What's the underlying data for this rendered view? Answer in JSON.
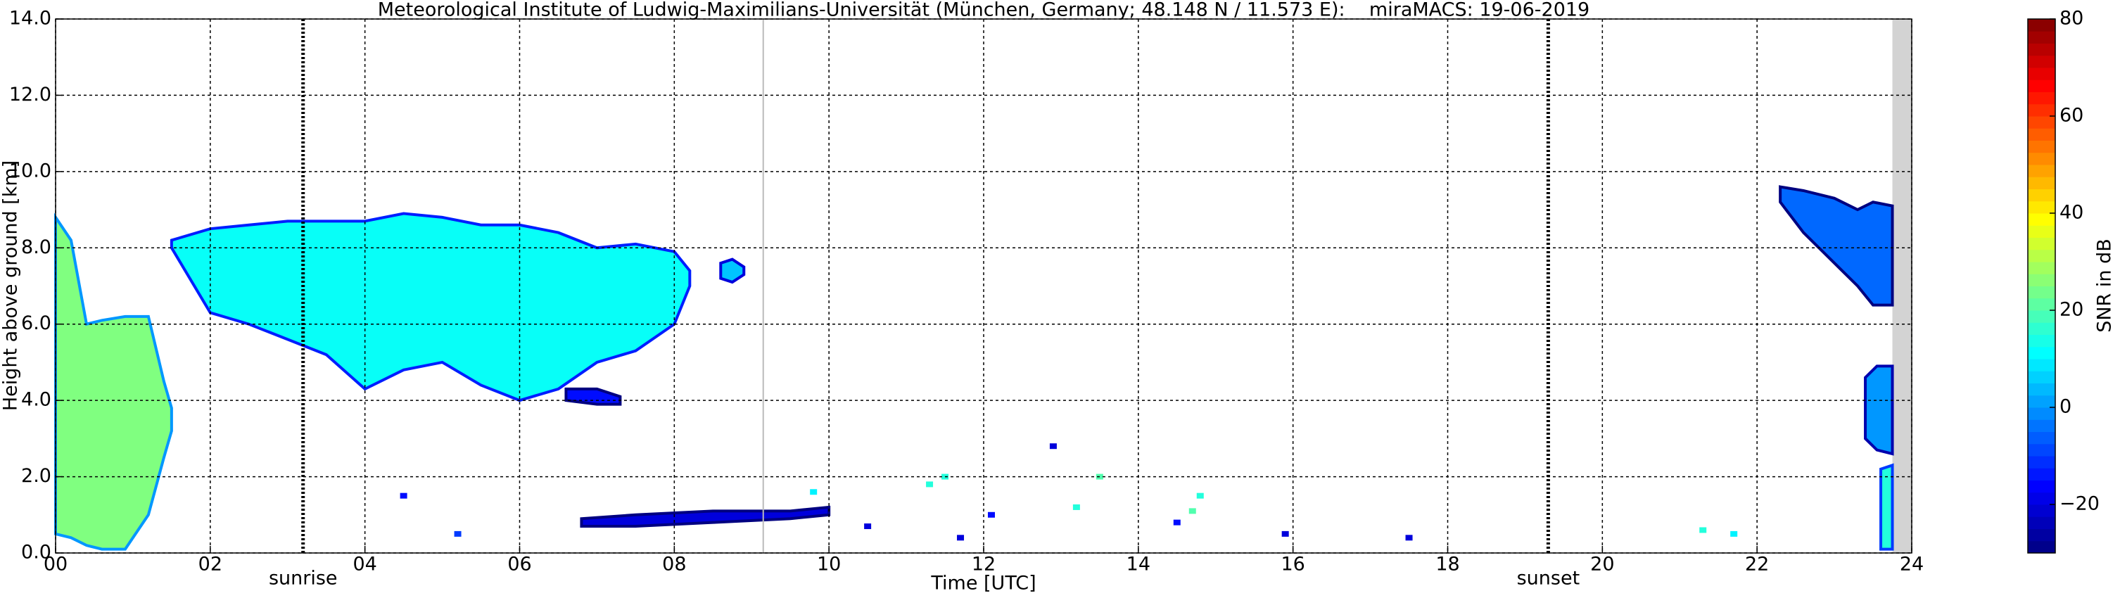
{
  "chart_data": {
    "type": "time-height",
    "title": "Meteorological Institute of Ludwig-Maximilians-Universität (München, Germany; 48.148 N / 11.573 E):    miraMACS: 19-06-2019",
    "x_label": "Time [UTC]",
    "y_label": "Height above ground [km]",
    "colorbar_label": "SNR in dB",
    "xlim": [
      0,
      24
    ],
    "ylim": [
      0,
      14
    ],
    "clim": [
      -30,
      80
    ],
    "xticks": [
      {
        "value": 0,
        "label": "00"
      },
      {
        "value": 2,
        "label": "02"
      },
      {
        "value": 4,
        "label": "04"
      },
      {
        "value": 6,
        "label": "06"
      },
      {
        "value": 8,
        "label": "08"
      },
      10,
      12,
      14,
      16,
      18,
      20,
      22,
      24
    ],
    "yticks": [
      {
        "value": 0,
        "label": "0.0"
      },
      {
        "value": 2,
        "label": "2.0"
      },
      {
        "value": 4,
        "label": "4.0"
      },
      {
        "value": 6,
        "label": "6.0"
      },
      {
        "value": 8,
        "label": "8.0"
      },
      {
        "value": 10,
        "label": "10.0"
      },
      {
        "value": 12,
        "label": "12.0"
      },
      {
        "value": 14,
        "label": "14.0"
      }
    ],
    "cticks": [
      {
        "value": -20,
        "label": "−20"
      },
      0,
      20,
      40,
      60,
      80
    ],
    "grid": true,
    "annotations": [
      {
        "x": 3.2,
        "label": "sunrise"
      },
      {
        "x": 19.3,
        "label": "sunset"
      }
    ],
    "reference_line": 9.15,
    "nodata": [
      23.75,
      24
    ],
    "series": [
      {
        "x": [
          0,
          0.2,
          0.4,
          0.6,
          0.9,
          1.2,
          1.4,
          1.5
        ],
        "top": [
          8.8,
          8.2,
          6.0,
          6.1,
          6.2,
          6.2,
          4.5,
          3.8
        ],
        "base": [
          0.5,
          0.4,
          0.2,
          0.1,
          0.1,
          1.0,
          2.5,
          3.2
        ],
        "snr": 25
      },
      {
        "x": [
          1.5,
          2.0,
          2.5,
          3.0,
          3.5,
          4.0,
          4.5,
          5.0,
          5.5,
          6.0,
          6.5,
          7.0,
          7.5,
          8.0,
          8.2
        ],
        "top": [
          8.2,
          8.5,
          8.6,
          8.7,
          8.7,
          8.7,
          8.9,
          8.8,
          8.6,
          8.6,
          8.4,
          8.0,
          8.1,
          7.9,
          7.4
        ],
        "base": [
          8.0,
          6.3,
          6.0,
          5.6,
          5.2,
          4.3,
          4.8,
          5.0,
          4.4,
          4.0,
          4.3,
          5.0,
          5.3,
          6.0,
          7.0
        ],
        "snr": 12
      },
      {
        "x": [
          8.6,
          8.75,
          8.9
        ],
        "top": [
          7.6,
          7.7,
          7.5
        ],
        "base": [
          7.2,
          7.1,
          7.3
        ],
        "snr": 5
      },
      {
        "x": [
          6.6,
          7.0,
          7.3
        ],
        "top": [
          4.3,
          4.3,
          4.1
        ],
        "base": [
          4.0,
          3.9,
          3.9
        ],
        "snr": -15
      },
      {
        "x": [
          22.3,
          22.6,
          23.0,
          23.3,
          23.5,
          23.75
        ],
        "top": [
          9.6,
          9.5,
          9.3,
          9.0,
          9.2,
          9.1
        ],
        "base": [
          9.2,
          8.4,
          7.6,
          7.0,
          6.5,
          6.5
        ],
        "snr": -5
      },
      {
        "x": [
          23.4,
          23.55,
          23.75
        ],
        "top": [
          4.6,
          4.9,
          4.9
        ],
        "base": [
          3.0,
          2.7,
          2.6
        ],
        "snr": 0
      },
      {
        "x": [
          23.6,
          23.75
        ],
        "top": [
          2.2,
          2.3
        ],
        "base": [
          0.1,
          0.1
        ],
        "snr": 15
      },
      {
        "x": [
          6.8,
          7.5,
          8.5,
          9.5,
          10.0
        ],
        "top": [
          0.9,
          1.0,
          1.1,
          1.1,
          1.2
        ],
        "base": [
          0.7,
          0.7,
          0.8,
          0.9,
          1.0
        ],
        "snr": -20
      }
    ],
    "clutter": {
      "x": [
        4.5,
        5.2,
        9.8,
        10.5,
        11.3,
        11.7,
        12.1,
        12.9,
        13.2,
        13.5,
        14.5,
        14.8,
        15.9,
        17.5,
        21.3,
        21.7,
        11.5,
        14.7
      ],
      "y": [
        1.5,
        0.5,
        1.6,
        0.7,
        1.8,
        0.4,
        1.0,
        2.8,
        1.2,
        2.0,
        0.8,
        1.5,
        0.5,
        0.4,
        0.6,
        0.5,
        2.0,
        1.1
      ],
      "snr": [
        -15,
        -10,
        10,
        -20,
        15,
        -20,
        -15,
        -20,
        15,
        20,
        -15,
        15,
        -20,
        -20,
        15,
        10,
        15,
        20
      ]
    }
  }
}
